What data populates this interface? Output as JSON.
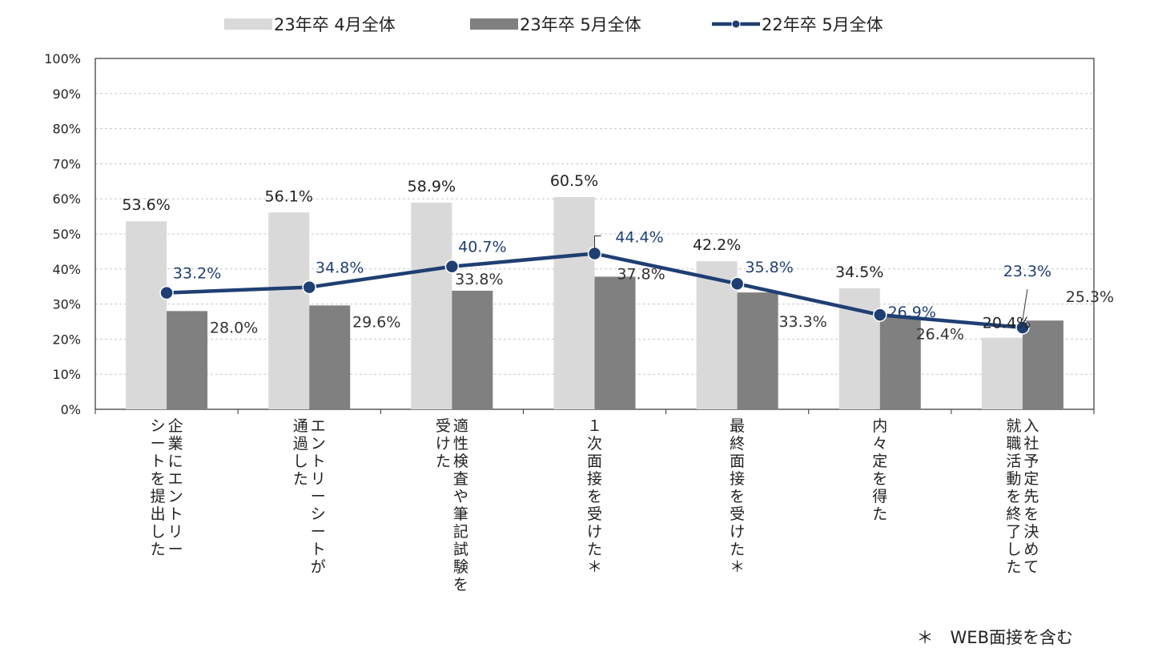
{
  "chart_data": {
    "type": "bar",
    "title": "",
    "xlabel": "",
    "ylabel": "",
    "ylim": [
      0,
      100
    ],
    "ytick_step": 10,
    "ytick_suffix": "%",
    "grid": true,
    "legend_position": "top",
    "categories": [
      [
        "企",
        "業",
        "に",
        "エ",
        "ン",
        "ト",
        "リ",
        "ー",
        "|",
        "シ",
        "ー",
        "ト",
        "を",
        "提",
        "出",
        "し",
        "た"
      ],
      [
        "エ",
        "ン",
        "ト",
        "リ",
        "ー",
        "シ",
        "ー",
        "ト",
        "が",
        "|",
        "通",
        "過",
        "し",
        "た"
      ],
      [
        "適",
        "性",
        "検",
        "査",
        "や",
        "筆",
        "記",
        "試",
        "験",
        "を",
        "|",
        "受",
        "け",
        "た"
      ],
      [
        "１",
        "次",
        "面",
        "接",
        "を",
        "受",
        "け",
        "た",
        "＊"
      ],
      [
        "最",
        "終",
        "面",
        "接",
        "を",
        "受",
        "け",
        "た",
        "＊"
      ],
      [
        "内",
        "々",
        "定",
        "を",
        "得",
        "た"
      ],
      [
        "入",
        "社",
        "予",
        "定",
        "先",
        "を",
        "決",
        "め",
        "て",
        "|",
        "就",
        "職",
        "活",
        "動",
        "を",
        "終",
        "了",
        "し",
        "た"
      ]
    ],
    "series": [
      {
        "name": "23年卒 4月全体",
        "kind": "bar",
        "color": "#d9d9d9",
        "values": [
          53.6,
          56.1,
          58.9,
          60.5,
          42.2,
          34.5,
          20.4
        ],
        "labels": [
          "53.6%",
          "56.1%",
          "58.9%",
          "60.5%",
          "42.2%",
          "34.5%",
          "20.4%"
        ]
      },
      {
        "name": "23年卒 5月全体",
        "kind": "bar",
        "color": "#808080",
        "values": [
          28.0,
          29.6,
          33.8,
          37.8,
          33.3,
          26.4,
          25.3
        ],
        "labels": [
          "28.0%",
          "29.6%",
          "33.8%",
          "37.8%",
          "33.3%",
          "26.4%",
          "25.3%"
        ]
      },
      {
        "name": "22年卒 5月全体",
        "kind": "line",
        "color": "#1f3f73",
        "values": [
          33.2,
          34.8,
          40.7,
          44.4,
          35.8,
          26.9,
          23.3
        ],
        "labels": [
          "33.2%",
          "34.8%",
          "40.7%",
          "44.4%",
          "35.8%",
          "26.9%",
          "23.3%"
        ]
      }
    ],
    "footnote": "＊　WEB面接を含む"
  }
}
